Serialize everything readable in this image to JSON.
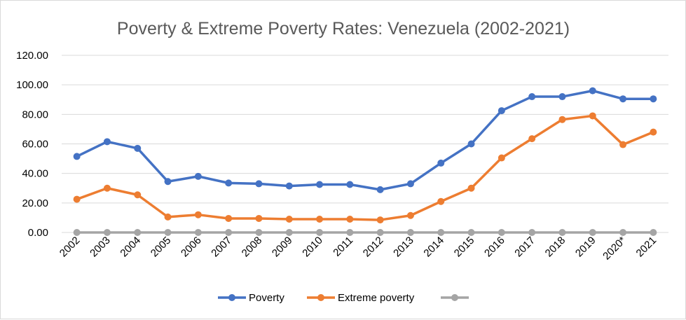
{
  "chart_data": {
    "type": "line",
    "title": "Poverty & Extreme Poverty Rates: Venezuela (2002-2021)",
    "xlabel": "",
    "ylabel": "",
    "ylim": [
      0,
      120
    ],
    "yticks": [
      0,
      20,
      40,
      60,
      80,
      100,
      120
    ],
    "ytick_labels": [
      "0.00",
      "20.00",
      "40.00",
      "60.00",
      "80.00",
      "100.00",
      "120.00"
    ],
    "categories": [
      "2002",
      "2003",
      "2004",
      "2005",
      "2006",
      "2007",
      "2008",
      "2009",
      "2010",
      "2011",
      "2012",
      "2013",
      "2014",
      "2015",
      "2016",
      "2017",
      "2018",
      "2019",
      "2020*",
      "2021"
    ],
    "grid": true,
    "legend_position": "bottom",
    "series": [
      {
        "name": "Poverty",
        "color": "#4472C4",
        "values": [
          51.5,
          61.5,
          57,
          34.5,
          38,
          33.5,
          33,
          31.5,
          32.5,
          32.5,
          29,
          33,
          47,
          60,
          82.5,
          92,
          92,
          96,
          90.5,
          90.5
        ]
      },
      {
        "name": "Extreme poverty",
        "color": "#ED7D31",
        "values": [
          22.5,
          30,
          25.5,
          10.5,
          12,
          9.5,
          9.5,
          9,
          9,
          9,
          8.5,
          11.5,
          21,
          30,
          50.5,
          63.5,
          76.5,
          79,
          59.5,
          68
        ]
      },
      {
        "name": "",
        "color": "#A5A5A5",
        "values": [
          0,
          0,
          0,
          0,
          0,
          0,
          0,
          0,
          0,
          0,
          0,
          0,
          0,
          0,
          0,
          0,
          0,
          0,
          0,
          0
        ]
      }
    ]
  }
}
